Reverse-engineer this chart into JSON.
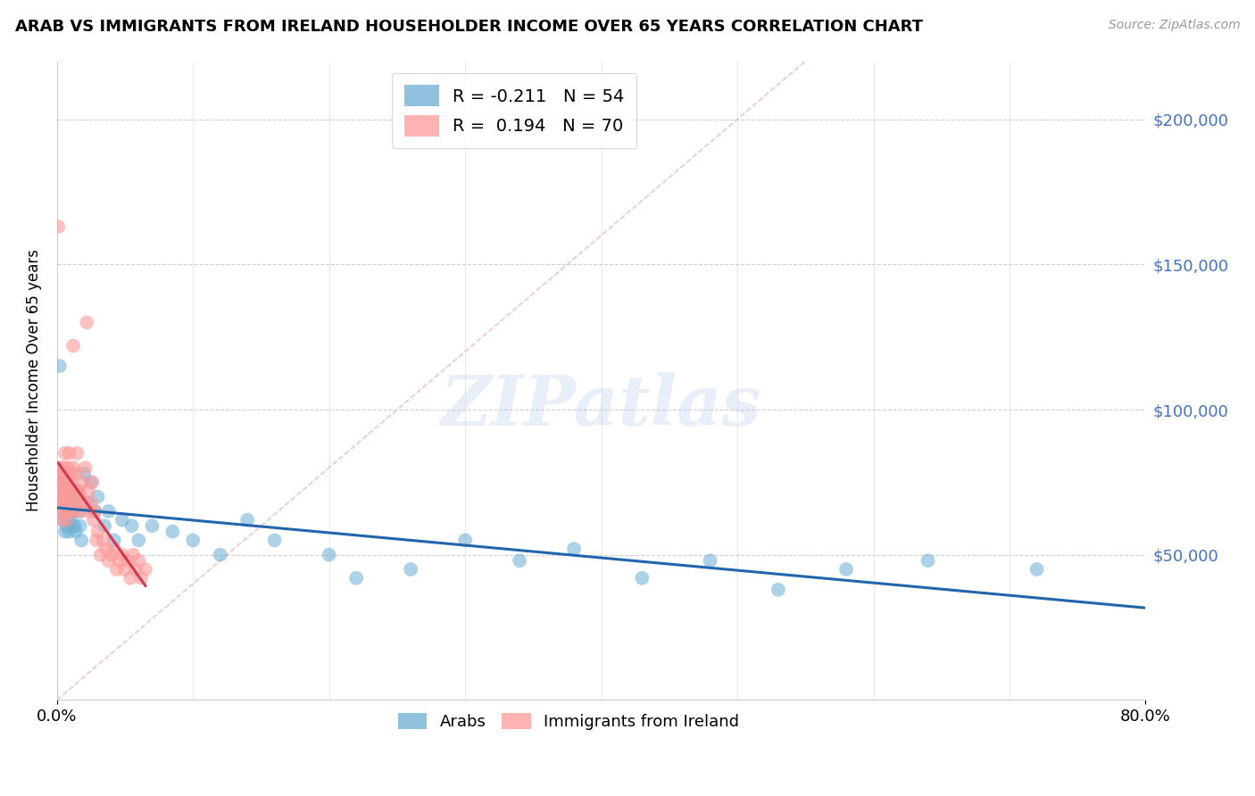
{
  "title": "ARAB VS IMMIGRANTS FROM IRELAND HOUSEHOLDER INCOME OVER 65 YEARS CORRELATION CHART",
  "source": "Source: ZipAtlas.com",
  "ylabel": "Householder Income Over 65 years",
  "yaxis_labels": [
    "$200,000",
    "$150,000",
    "$100,000",
    "$50,000"
  ],
  "yaxis_values": [
    200000,
    150000,
    100000,
    50000
  ],
  "ylim": [
    0,
    220000
  ],
  "xlim": [
    0.0,
    0.8
  ],
  "watermark": "ZIPatlas",
  "arab_color": "#6baed6",
  "ireland_color": "#fb9a99",
  "arab_line_color": "#2166ac",
  "ireland_line_color": "#d4384e",
  "arab_R": -0.211,
  "arab_N": 54,
  "ireland_R": 0.194,
  "ireland_N": 70,
  "arabs_x": [
    0.002,
    0.003,
    0.003,
    0.004,
    0.004,
    0.005,
    0.005,
    0.006,
    0.006,
    0.007,
    0.007,
    0.008,
    0.008,
    0.009,
    0.009,
    0.01,
    0.01,
    0.011,
    0.012,
    0.013,
    0.014,
    0.015,
    0.016,
    0.017,
    0.018,
    0.02,
    0.022,
    0.025,
    0.028,
    0.03,
    0.035,
    0.038,
    0.042,
    0.048,
    0.055,
    0.06,
    0.07,
    0.085,
    0.1,
    0.12,
    0.14,
    0.16,
    0.2,
    0.22,
    0.26,
    0.3,
    0.34,
    0.38,
    0.43,
    0.48,
    0.53,
    0.58,
    0.64,
    0.72
  ],
  "arabs_y": [
    115000,
    72000,
    68000,
    78000,
    65000,
    75000,
    62000,
    70000,
    58000,
    73000,
    60000,
    68000,
    62000,
    72000,
    58000,
    67000,
    62000,
    65000,
    70000,
    60000,
    58000,
    72000,
    65000,
    60000,
    55000,
    78000,
    68000,
    75000,
    65000,
    70000,
    60000,
    65000,
    55000,
    62000,
    60000,
    55000,
    60000,
    58000,
    55000,
    50000,
    62000,
    55000,
    50000,
    42000,
    45000,
    55000,
    48000,
    52000,
    42000,
    48000,
    38000,
    45000,
    48000,
    45000
  ],
  "ireland_x": [
    0.001,
    0.002,
    0.002,
    0.003,
    0.003,
    0.003,
    0.004,
    0.004,
    0.004,
    0.005,
    0.005,
    0.005,
    0.006,
    0.006,
    0.006,
    0.006,
    0.007,
    0.007,
    0.007,
    0.007,
    0.008,
    0.008,
    0.008,
    0.009,
    0.009,
    0.009,
    0.01,
    0.01,
    0.01,
    0.011,
    0.011,
    0.012,
    0.012,
    0.013,
    0.013,
    0.014,
    0.014,
    0.015,
    0.016,
    0.017,
    0.018,
    0.019,
    0.02,
    0.021,
    0.022,
    0.023,
    0.024,
    0.025,
    0.026,
    0.027,
    0.028,
    0.029,
    0.03,
    0.032,
    0.034,
    0.036,
    0.038,
    0.04,
    0.042,
    0.044,
    0.046,
    0.048,
    0.05,
    0.052,
    0.054,
    0.056,
    0.058,
    0.06,
    0.062,
    0.065
  ],
  "ireland_y": [
    163000,
    75000,
    68000,
    80000,
    72000,
    65000,
    78000,
    70000,
    62000,
    75000,
    68000,
    80000,
    72000,
    65000,
    78000,
    85000,
    70000,
    75000,
    62000,
    68000,
    80000,
    72000,
    65000,
    75000,
    85000,
    70000,
    78000,
    65000,
    72000,
    68000,
    75000,
    80000,
    122000,
    72000,
    65000,
    68000,
    78000,
    85000,
    72000,
    70000,
    65000,
    75000,
    68000,
    80000,
    130000,
    72000,
    65000,
    68000,
    75000,
    62000,
    65000,
    55000,
    58000,
    50000,
    55000,
    52000,
    48000,
    50000,
    52000,
    45000,
    48000,
    50000,
    45000,
    48000,
    42000,
    50000,
    45000,
    48000,
    42000,
    45000
  ]
}
